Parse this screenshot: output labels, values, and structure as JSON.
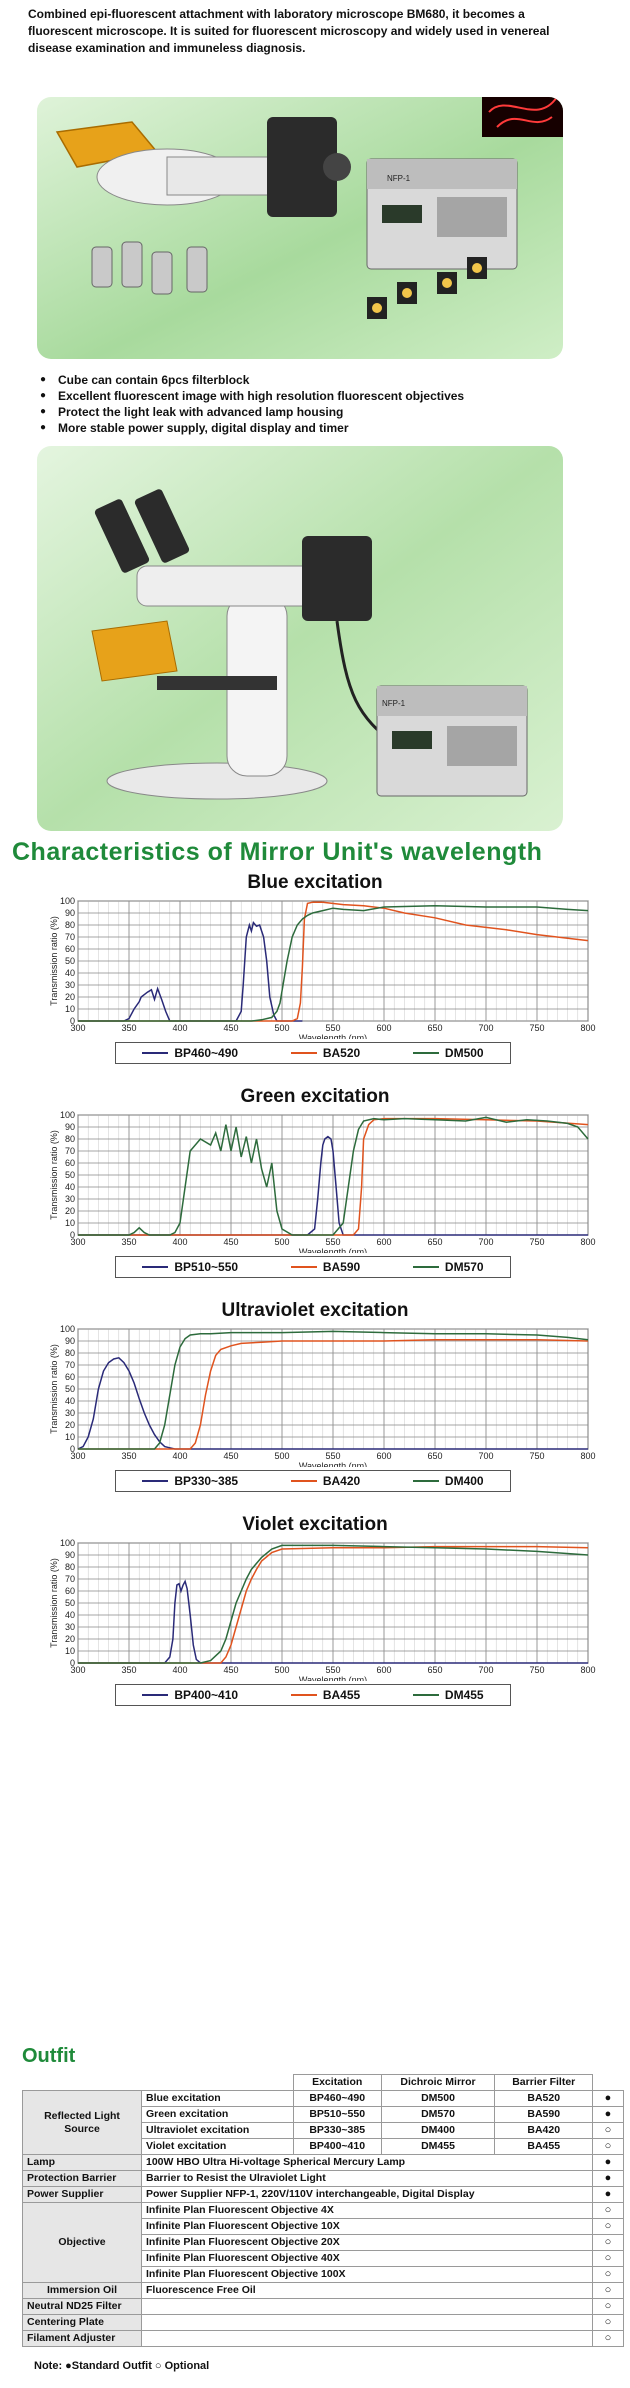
{
  "intro": "Combined epi-fluorescent attachment with laboratory microscope BM680, it becomes a fluorescent microscope. It is suited for fluorescent microscopy and widely used in venereal disease examination and immuneless diagnosis.",
  "photo1": {
    "power_label": "NFP-1"
  },
  "bullets": [
    "Cube can contain 6pcs filterblock",
    "Excellent fluorescent image with high resolution fluorescent objectives",
    "Protect the light leak with advanced lamp housing",
    "More stable power supply, digital display and timer"
  ],
  "photo2": {
    "power_label": "NFP-1"
  },
  "section_title": "Characteristics of Mirror Unit's wavelength",
  "chart_data": [
    {
      "type": "line",
      "title": "Blue excitation",
      "xlabel": "Wavelength (nm)",
      "ylabel": "Transmission ratio (%)",
      "xlim": [
        300,
        800
      ],
      "ylim": [
        0,
        100
      ],
      "xticks": [
        300,
        350,
        400,
        450,
        500,
        550,
        600,
        650,
        700,
        750,
        800
      ],
      "yticks": [
        0,
        10,
        20,
        30,
        40,
        50,
        60,
        70,
        80,
        90,
        100
      ],
      "series": [
        {
          "name": "BP460~490",
          "color": "#2a2a78",
          "x": [
            300,
            345,
            350,
            355,
            360,
            362,
            368,
            372,
            375,
            378,
            382,
            386,
            390,
            420,
            455,
            460,
            462,
            465,
            468,
            470,
            472,
            475,
            478,
            482,
            485,
            488,
            492,
            495,
            500,
            520
          ],
          "y": [
            0,
            0,
            2,
            10,
            16,
            20,
            24,
            26,
            18,
            27,
            18,
            8,
            0,
            0,
            0,
            8,
            30,
            70,
            80,
            75,
            82,
            79,
            80,
            70,
            50,
            20,
            5,
            0,
            0,
            0
          ]
        },
        {
          "name": "BA520",
          "color": "#e0531e",
          "x": [
            300,
            510,
            515,
            518,
            520,
            522,
            525,
            530,
            540,
            560,
            580,
            600,
            620,
            650,
            680,
            700,
            720,
            750,
            780,
            800
          ],
          "y": [
            0,
            0,
            2,
            15,
            45,
            85,
            98,
            99,
            99,
            97,
            96,
            94,
            90,
            86,
            80,
            78,
            76,
            72,
            69,
            67
          ]
        },
        {
          "name": "DM500",
          "color": "#2d6b3c",
          "x": [
            300,
            470,
            480,
            490,
            495,
            498,
            500,
            505,
            510,
            515,
            520,
            525,
            530,
            540,
            550,
            560,
            580,
            600,
            650,
            700,
            750,
            780,
            800
          ],
          "y": [
            0,
            0,
            1,
            3,
            8,
            15,
            25,
            50,
            70,
            80,
            85,
            88,
            90,
            92,
            94,
            93,
            92,
            95,
            96,
            95,
            95,
            93,
            92
          ]
        }
      ]
    },
    {
      "type": "line",
      "title": "Green excitation",
      "xlabel": "Wavelength (nm)",
      "ylabel": "Transmission ratio (%)",
      "xlim": [
        300,
        800
      ],
      "ylim": [
        0,
        100
      ],
      "xticks": [
        300,
        350,
        400,
        450,
        500,
        550,
        600,
        650,
        700,
        750,
        800
      ],
      "yticks": [
        0,
        10,
        20,
        30,
        40,
        50,
        60,
        70,
        80,
        90,
        100
      ],
      "series": [
        {
          "name": "BP510~550",
          "color": "#2a2a78",
          "x": [
            300,
            525,
            532,
            535,
            538,
            540,
            542,
            545,
            548,
            550,
            553,
            556,
            560,
            600,
            800
          ],
          "y": [
            0,
            0,
            5,
            30,
            60,
            75,
            80,
            82,
            80,
            70,
            40,
            10,
            0,
            0,
            0
          ]
        },
        {
          "name": "BA590",
          "color": "#e0531e",
          "x": [
            300,
            570,
            575,
            578,
            580,
            585,
            590,
            600,
            650,
            700,
            750,
            800
          ],
          "y": [
            0,
            0,
            5,
            40,
            80,
            92,
            96,
            97,
            97,
            96,
            95,
            92
          ]
        },
        {
          "name": "DM570",
          "color": "#2d6b3c",
          "x": [
            300,
            350,
            355,
            360,
            365,
            370,
            375,
            380,
            390,
            395,
            400,
            405,
            410,
            420,
            430,
            435,
            440,
            445,
            450,
            455,
            460,
            465,
            470,
            475,
            480,
            485,
            490,
            495,
            500,
            510,
            520,
            530,
            540,
            550,
            560,
            565,
            570,
            575,
            580,
            590,
            600,
            620,
            650,
            680,
            700,
            720,
            740,
            760,
            780,
            790,
            800
          ],
          "y": [
            0,
            0,
            2,
            6,
            2,
            0,
            0,
            0,
            0,
            2,
            10,
            40,
            70,
            80,
            75,
            85,
            70,
            92,
            70,
            90,
            65,
            82,
            60,
            80,
            55,
            40,
            60,
            20,
            5,
            0,
            0,
            0,
            0,
            0,
            10,
            40,
            70,
            88,
            95,
            97,
            96,
            97,
            96,
            95,
            98,
            94,
            96,
            95,
            93,
            90,
            80
          ]
        }
      ]
    },
    {
      "type": "line",
      "title": "Ultraviolet excitation",
      "xlabel": "Wavelength (nm)",
      "ylabel": "Transmission ratio (%)",
      "xlim": [
        300,
        800
      ],
      "ylim": [
        0,
        100
      ],
      "xticks": [
        300,
        350,
        400,
        450,
        500,
        550,
        600,
        650,
        700,
        750,
        800
      ],
      "yticks": [
        0,
        10,
        20,
        30,
        40,
        50,
        60,
        70,
        80,
        90,
        100
      ],
      "series": [
        {
          "name": "BP330~385",
          "color": "#2a2a78",
          "x": [
            300,
            305,
            310,
            315,
            320,
            325,
            330,
            335,
            340,
            345,
            350,
            355,
            360,
            365,
            370,
            375,
            380,
            385,
            390,
            395,
            400,
            800
          ],
          "y": [
            0,
            2,
            10,
            25,
            50,
            65,
            72,
            75,
            76,
            72,
            65,
            55,
            42,
            30,
            20,
            12,
            6,
            2,
            1,
            0,
            0,
            0
          ]
        },
        {
          "name": "BA420",
          "color": "#e0531e",
          "x": [
            300,
            410,
            415,
            420,
            425,
            430,
            435,
            440,
            450,
            460,
            480,
            500,
            550,
            600,
            650,
            700,
            750,
            800
          ],
          "y": [
            0,
            0,
            5,
            20,
            45,
            65,
            78,
            83,
            86,
            88,
            89,
            90,
            90,
            90,
            91,
            91,
            91,
            90
          ]
        },
        {
          "name": "DM400",
          "color": "#2d6b3c",
          "x": [
            300,
            375,
            380,
            385,
            390,
            395,
            400,
            405,
            410,
            420,
            430,
            450,
            500,
            550,
            600,
            650,
            700,
            750,
            780,
            800
          ],
          "y": [
            0,
            0,
            5,
            20,
            45,
            70,
            85,
            92,
            95,
            96,
            96,
            97,
            97,
            98,
            97,
            96,
            96,
            95,
            93,
            91
          ]
        }
      ]
    },
    {
      "type": "line",
      "title": "Violet excitation",
      "xlabel": "Wavelength (nm)",
      "ylabel": "Transmission ratio (%)",
      "xlim": [
        300,
        800
      ],
      "ylim": [
        0,
        100
      ],
      "xticks": [
        300,
        350,
        400,
        450,
        500,
        550,
        600,
        650,
        700,
        750,
        800
      ],
      "yticks": [
        0,
        10,
        20,
        30,
        40,
        50,
        60,
        70,
        80,
        90,
        100
      ],
      "series": [
        {
          "name": "BP400~410",
          "color": "#2a2a78",
          "x": [
            300,
            385,
            390,
            393,
            395,
            397,
            399,
            401,
            403,
            405,
            407,
            410,
            413,
            416,
            420,
            800
          ],
          "y": [
            0,
            0,
            5,
            20,
            50,
            65,
            66,
            60,
            65,
            68,
            62,
            40,
            15,
            3,
            0,
            0
          ]
        },
        {
          "name": "BA455",
          "color": "#e0531e",
          "x": [
            300,
            440,
            445,
            450,
            455,
            460,
            465,
            470,
            475,
            480,
            490,
            500,
            550,
            600,
            650,
            700,
            750,
            800
          ],
          "y": [
            0,
            0,
            5,
            15,
            30,
            45,
            60,
            70,
            78,
            85,
            92,
            95,
            96,
            96,
            97,
            97,
            97,
            96
          ]
        },
        {
          "name": "DM455",
          "color": "#2d6b3c",
          "x": [
            300,
            420,
            430,
            440,
            445,
            450,
            455,
            460,
            465,
            470,
            480,
            490,
            500,
            550,
            600,
            650,
            700,
            750,
            800
          ],
          "y": [
            0,
            0,
            2,
            10,
            20,
            35,
            50,
            60,
            70,
            78,
            88,
            95,
            98,
            98,
            97,
            96,
            95,
            93,
            90
          ]
        }
      ]
    }
  ],
  "outfit": {
    "title": "Outfit",
    "headers": [
      "Excitation",
      "Dichroic Mirror",
      "Barrier Filter"
    ],
    "reflected_label": "Reflected Light Source",
    "reflected_rows": [
      {
        "name": "Blue excitation",
        "excitation": "BP460~490",
        "mirror": "DM500",
        "barrier": "BA520",
        "mark": "●"
      },
      {
        "name": "Green excitation",
        "excitation": "BP510~550",
        "mirror": "DM570",
        "barrier": "BA590",
        "mark": "●"
      },
      {
        "name": "Ultraviolet excitation",
        "excitation": "BP330~385",
        "mirror": "DM400",
        "barrier": "BA420",
        "mark": "○"
      },
      {
        "name": "Violet excitation",
        "excitation": "BP400~410",
        "mirror": "DM455",
        "barrier": "BA455",
        "mark": "○"
      }
    ],
    "lamp": {
      "label": "Lamp",
      "value": "100W HBO Ultra Hi-voltage Spherical Mercury Lamp",
      "mark": "●"
    },
    "protection": {
      "label": "Protection Barrier",
      "value": "Barrier to Resist the Ulraviolet Light",
      "mark": "●"
    },
    "power": {
      "label": "Power Supplier",
      "value": "Power Supplier NFP-1, 220V/110V interchangeable, Digital Display",
      "mark": "●"
    },
    "objective_label": "Objective",
    "objectives": [
      {
        "value": "Infinite Plan Fluorescent Objective 4X",
        "mark": "○"
      },
      {
        "value": "Infinite Plan Fluorescent Objective 10X",
        "mark": "○"
      },
      {
        "value": "Infinite Plan Fluorescent Objective 20X",
        "mark": "○"
      },
      {
        "value": "Infinite Plan Fluorescent Objective 40X",
        "mark": "○"
      },
      {
        "value": "Infinite Plan Fluorescent Objective 100X",
        "mark": "○"
      }
    ],
    "immersion": {
      "label": "Immersion Oil",
      "value": "Fluorescence Free Oil",
      "mark": "○"
    },
    "neutral": {
      "label": "Neutral ND25 Filter",
      "mark": "○"
    },
    "centering": {
      "label": "Centering Plate",
      "mark": "○"
    },
    "filament": {
      "label": "Filament Adjuster",
      "mark": "○"
    }
  },
  "note": "Note: ●Standard Outfit ○ Optional"
}
